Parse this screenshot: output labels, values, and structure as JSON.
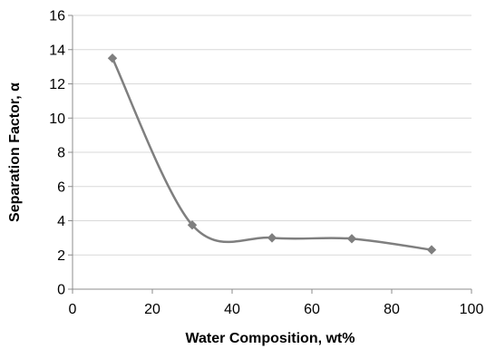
{
  "chart_data": {
    "type": "scatter",
    "xlabel": "Water Composition, wt%",
    "ylabel": "Separation Factor, α",
    "xlim": [
      0,
      100
    ],
    "ylim": [
      0,
      16
    ],
    "xticks": [
      0,
      20,
      40,
      60,
      80,
      100
    ],
    "yticks": [
      0,
      2,
      4,
      6,
      8,
      10,
      12,
      14,
      16
    ],
    "grid": "horizontal",
    "legend": "none",
    "series": [
      {
        "x": [
          10,
          30,
          50,
          70,
          90
        ],
        "y": [
          13.5,
          3.75,
          3.0,
          2.95,
          2.3
        ],
        "marker": "diamond",
        "line": "smooth",
        "color": "#7f7f7f"
      }
    ]
  }
}
